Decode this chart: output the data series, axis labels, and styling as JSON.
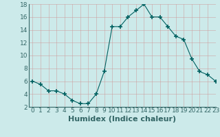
{
  "x": [
    0,
    1,
    2,
    3,
    4,
    5,
    6,
    7,
    8,
    9,
    10,
    11,
    12,
    13,
    14,
    15,
    16,
    17,
    18,
    19,
    20,
    21,
    22,
    23
  ],
  "y": [
    6,
    5.5,
    4.5,
    4.5,
    4,
    3,
    2.5,
    2.5,
    4,
    7.5,
    14.5,
    14.5,
    16,
    17,
    18,
    16,
    16,
    14.5,
    13,
    12.5,
    9.5,
    7.5,
    7,
    6
  ],
  "line_color": "#006060",
  "marker": "+",
  "marker_size": 5,
  "bg_color": "#cceaea",
  "grid_color": "#aacccc",
  "xlabel": "Humidex (Indice chaleur)",
  "xlabel_fontsize": 8,
  "ylim": [
    2,
    18
  ],
  "xlim": [
    -0.5,
    23
  ],
  "yticks": [
    2,
    4,
    6,
    8,
    10,
    12,
    14,
    16,
    18
  ],
  "xticks": [
    0,
    1,
    2,
    3,
    4,
    5,
    6,
    7,
    8,
    9,
    10,
    11,
    12,
    13,
    14,
    15,
    16,
    17,
    18,
    19,
    20,
    21,
    22,
    23
  ],
  "tick_fontsize": 6.5,
  "spine_color": "#336666"
}
